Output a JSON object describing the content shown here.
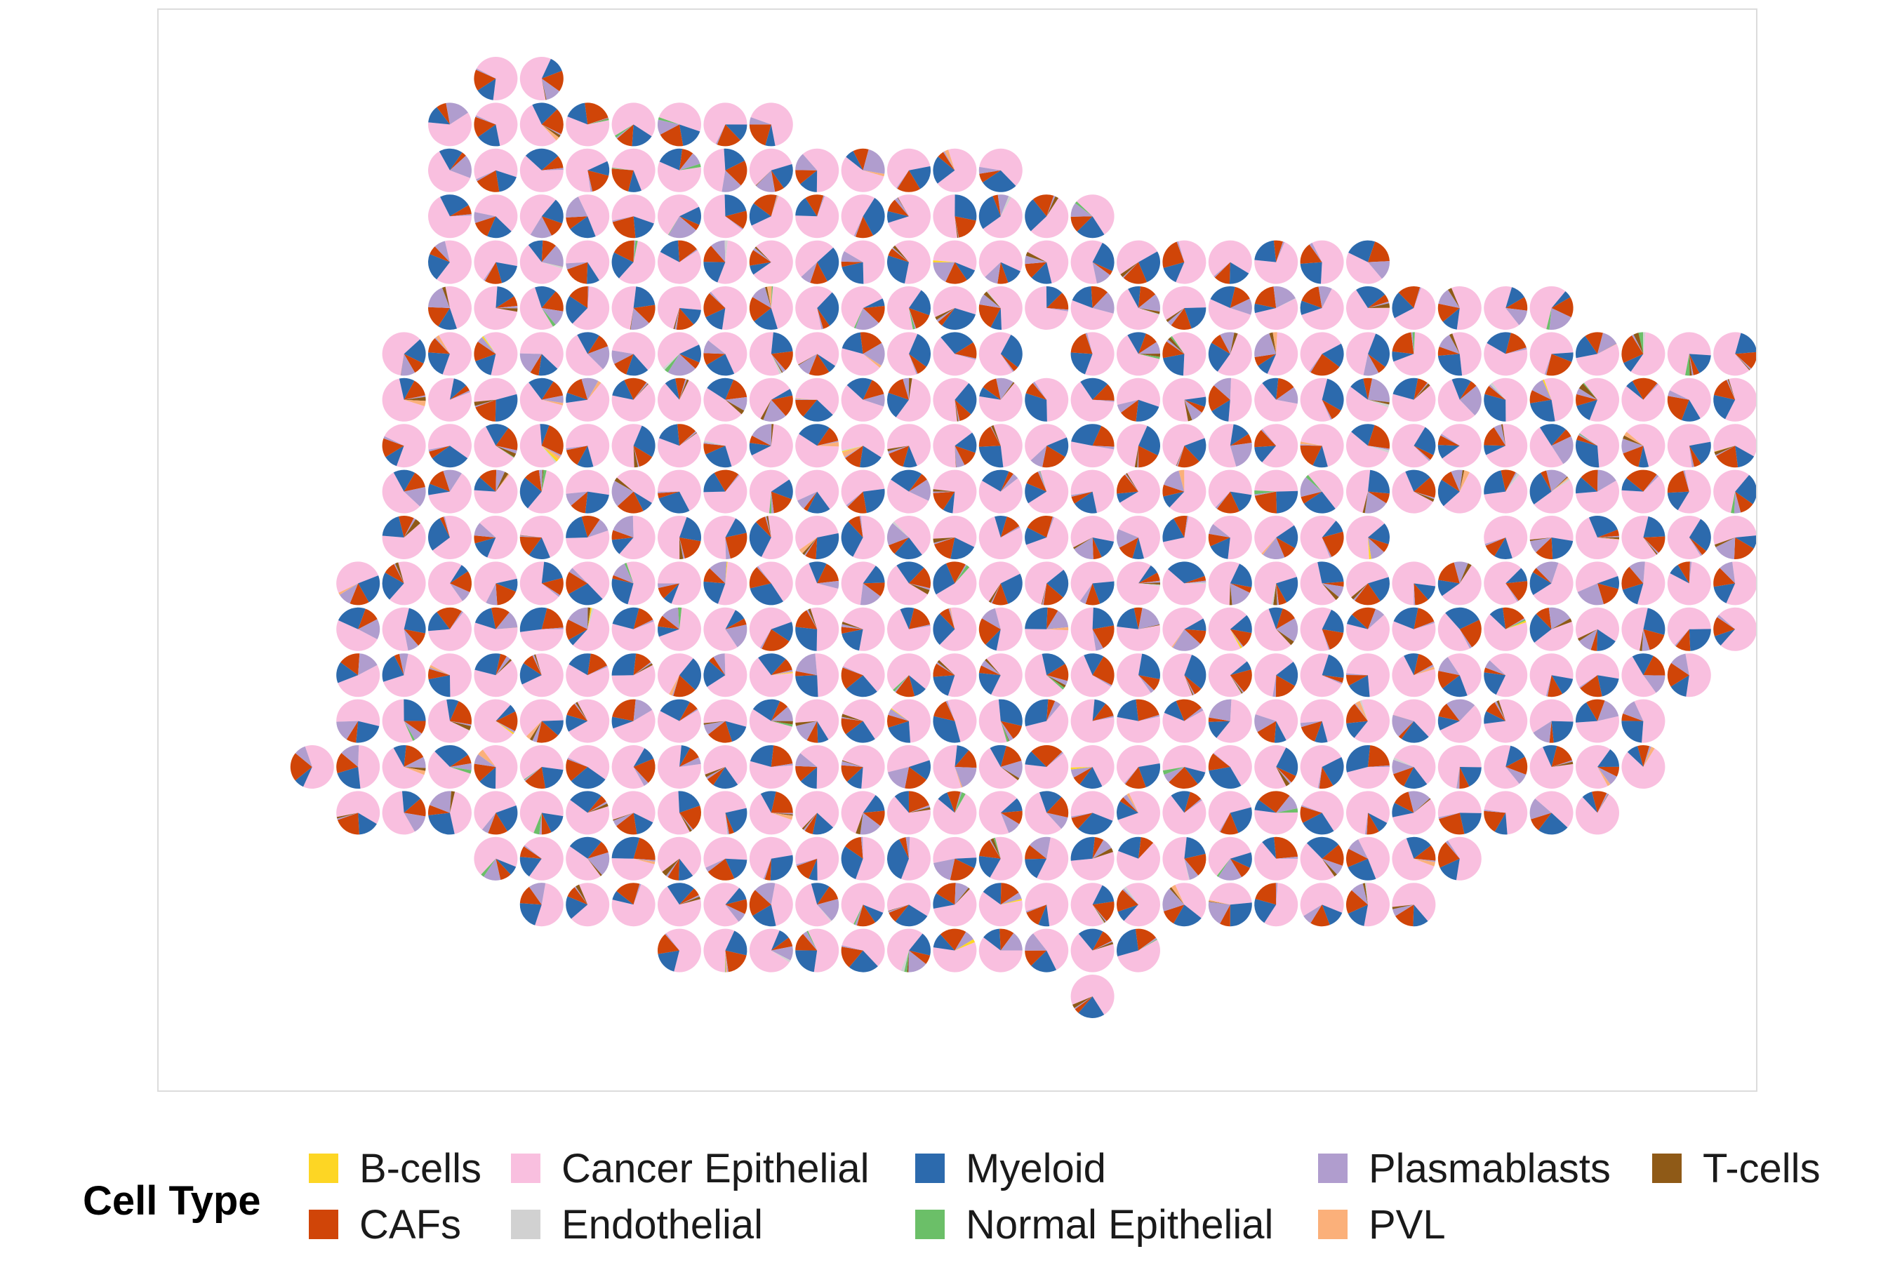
{
  "chart_data": {
    "type": "scatter",
    "subtype": "spatial-pie-scatter",
    "title": "",
    "xlabel": "",
    "ylabel": "",
    "legend": {
      "title": "Cell Type",
      "placement": "bottom",
      "items": [
        {
          "label": "B-cells",
          "color": "#fdd624"
        },
        {
          "label": "CAFs",
          "color": "#d04508"
        },
        {
          "label": "Cancer Epithelial",
          "color": "#f9bfdf"
        },
        {
          "label": "Endothelial",
          "color": "#d1d1d1"
        },
        {
          "label": "Myeloid",
          "color": "#2c6aad"
        },
        {
          "label": "Normal Epithelial",
          "color": "#6bbf68"
        },
        {
          "label": "Plasmablasts",
          "color": "#b09dce"
        },
        {
          "label": "PVL",
          "color": "#fbb07a"
        },
        {
          "label": "T-cells",
          "color": "#8f5a17"
        }
      ]
    },
    "rows": [
      {
        "y": 0,
        "x": [
          6,
          7
        ]
      },
      {
        "y": 1,
        "x": [
          5,
          6,
          7,
          8,
          9,
          10,
          11,
          12
        ]
      },
      {
        "y": 2,
        "x": [
          5,
          6,
          7,
          8,
          9,
          10,
          11,
          12,
          13,
          14,
          15,
          16,
          17
        ]
      },
      {
        "y": 3,
        "x": [
          5,
          6,
          7,
          8,
          9,
          10,
          11,
          12,
          13,
          14,
          15,
          16,
          17,
          18,
          19
        ]
      },
      {
        "y": 4,
        "x": [
          5,
          6,
          7,
          8,
          9,
          10,
          11,
          12,
          13,
          14,
          15,
          16,
          17,
          18,
          19,
          20,
          21,
          22,
          23,
          24,
          25
        ]
      },
      {
        "y": 5,
        "x": [
          5,
          6,
          7,
          8,
          9,
          10,
          11,
          12,
          13,
          14,
          15,
          16,
          17,
          18,
          19,
          20,
          21,
          22,
          23,
          24,
          25,
          26,
          27,
          28,
          29
        ]
      },
      {
        "y": 6,
        "x": [
          4,
          5,
          6,
          7,
          8,
          9,
          10,
          11,
          12,
          13,
          14,
          15,
          16,
          17,
          19,
          20,
          21,
          22,
          23,
          24,
          25,
          26,
          27,
          28,
          29,
          30,
          31,
          32,
          33
        ]
      },
      {
        "y": 7,
        "x": [
          4,
          5,
          6,
          7,
          8,
          9,
          10,
          11,
          12,
          13,
          14,
          15,
          16,
          17,
          18,
          19,
          20,
          21,
          22,
          23,
          24,
          25,
          26,
          27,
          28,
          29,
          30,
          31,
          32,
          33,
          34
        ]
      },
      {
        "y": 8,
        "x": [
          4,
          5,
          6,
          7,
          8,
          9,
          10,
          11,
          12,
          13,
          14,
          15,
          16,
          17,
          18,
          19,
          20,
          21,
          22,
          23,
          24,
          25,
          26,
          27,
          28,
          29,
          30,
          31,
          32,
          33,
          34
        ]
      },
      {
        "y": 9,
        "x": [
          4,
          5,
          6,
          7,
          8,
          9,
          10,
          11,
          12,
          13,
          14,
          15,
          16,
          17,
          18,
          19,
          20,
          21,
          22,
          23,
          24,
          25,
          26,
          27,
          28,
          29,
          30,
          31,
          32,
          33,
          34
        ]
      },
      {
        "y": 10,
        "x": [
          4,
          5,
          6,
          7,
          8,
          9,
          10,
          11,
          12,
          13,
          14,
          15,
          16,
          17,
          18,
          19,
          20,
          21,
          22,
          23,
          24,
          25,
          28,
          29,
          30,
          31,
          32,
          33
        ]
      },
      {
        "y": 11,
        "x": [
          3,
          4,
          5,
          6,
          7,
          8,
          9,
          10,
          11,
          12,
          13,
          14,
          15,
          16,
          17,
          18,
          19,
          20,
          21,
          22,
          23,
          24,
          25,
          26,
          27,
          28,
          29,
          30,
          31,
          32,
          33
        ]
      },
      {
        "y": 12,
        "x": [
          3,
          4,
          5,
          6,
          7,
          8,
          9,
          10,
          11,
          12,
          13,
          14,
          15,
          16,
          17,
          18,
          19,
          20,
          21,
          22,
          23,
          24,
          25,
          26,
          27,
          28,
          29,
          30,
          31,
          32,
          33
        ]
      },
      {
        "y": 13,
        "x": [
          3,
          4,
          5,
          6,
          7,
          8,
          9,
          10,
          11,
          12,
          13,
          14,
          15,
          16,
          17,
          18,
          19,
          20,
          21,
          22,
          23,
          24,
          25,
          26,
          27,
          28,
          29,
          30,
          31,
          32
        ]
      },
      {
        "y": 14,
        "x": [
          3,
          4,
          5,
          6,
          7,
          8,
          9,
          10,
          11,
          12,
          13,
          14,
          15,
          16,
          17,
          18,
          19,
          20,
          21,
          22,
          23,
          24,
          25,
          26,
          27,
          28,
          29,
          30,
          31
        ]
      },
      {
        "y": 15,
        "x": [
          2,
          3,
          4,
          5,
          6,
          7,
          8,
          9,
          10,
          11,
          12,
          13,
          14,
          15,
          16,
          17,
          18,
          19,
          20,
          21,
          22,
          23,
          24,
          25,
          26,
          27,
          28,
          29,
          30,
          31
        ]
      },
      {
        "y": 16,
        "x": [
          3,
          4,
          5,
          6,
          7,
          8,
          9,
          10,
          11,
          12,
          13,
          14,
          15,
          16,
          17,
          18,
          19,
          20,
          21,
          22,
          23,
          24,
          25,
          26,
          27,
          28,
          29,
          30
        ]
      },
      {
        "y": 17,
        "x": [
          6,
          7,
          8,
          9,
          10,
          11,
          12,
          13,
          14,
          15,
          16,
          17,
          18,
          19,
          20,
          21,
          22,
          23,
          24,
          25,
          26,
          27
        ]
      },
      {
        "y": 18,
        "x": [
          7,
          8,
          9,
          10,
          11,
          12,
          13,
          14,
          15,
          16,
          17,
          18,
          19,
          20,
          21,
          22,
          23,
          24,
          25,
          26
        ]
      },
      {
        "y": 19,
        "x": [
          10,
          11,
          12,
          13,
          14,
          15,
          16,
          17,
          18,
          19,
          20
        ]
      },
      {
        "y": 20,
        "x": [
          19
        ]
      }
    ],
    "note_on_values": "Each spot is a pie of cell-type proportions (majority Cancer Epithelial, with Myeloid, CAFs, Plasmablasts; minor PVL, Normal Epithelial, T-cells, B-cells)."
  }
}
